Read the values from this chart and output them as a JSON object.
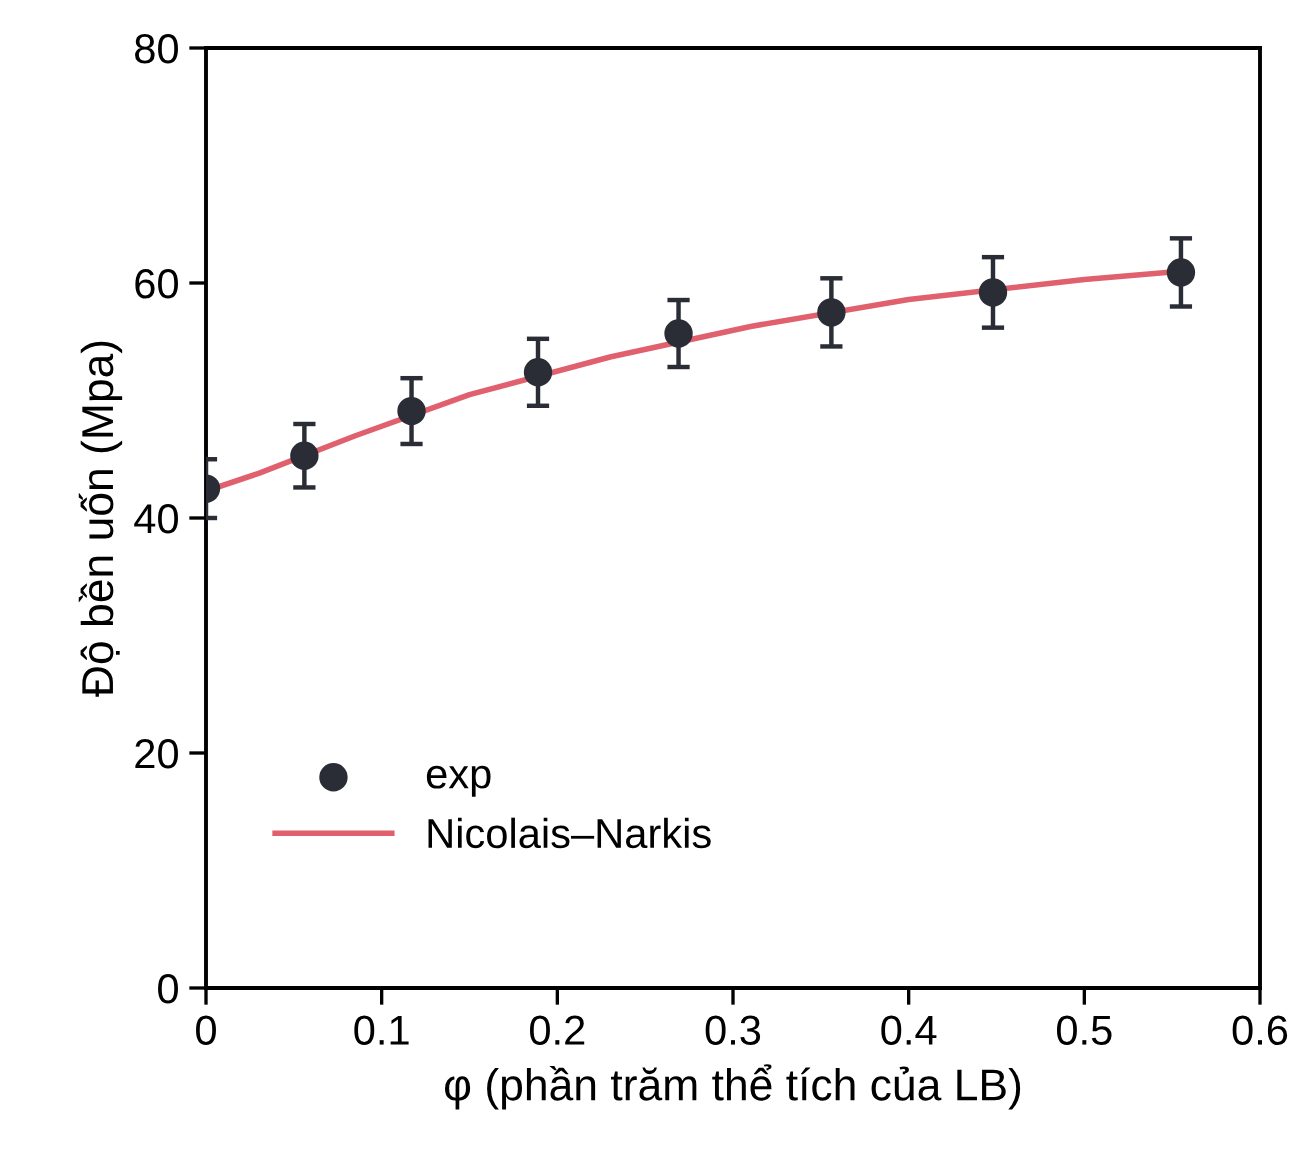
{
  "chart_data": {
    "type": "scatter",
    "xlabel": "φ (phần trăm thể tích của LB)",
    "ylabel": "Độ bền uốn (Mpa)",
    "xlim": [
      0,
      0.6
    ],
    "xticks": [
      0,
      0.1,
      0.2,
      0.3,
      0.4,
      0.5,
      0.6
    ],
    "ylim": [
      0,
      80
    ],
    "yticks": [
      0,
      20,
      40,
      60,
      80
    ],
    "grid": false,
    "legend": "bottom left",
    "series": [
      {
        "name": "exp",
        "color": "#2a2d35",
        "marker": "circle",
        "x": [
          0,
          0.056,
          0.117,
          0.189,
          0.269,
          0.356,
          0.448,
          0.555
        ],
        "values": [
          42.5,
          45.3,
          49.1,
          52.4,
          55.7,
          57.5,
          59.2,
          60.9
        ],
        "errors": [
          2.5,
          2.7,
          2.8,
          2.85,
          2.85,
          2.9,
          3.0,
          2.9
        ]
      },
      {
        "name": "Nicolais–Narkis",
        "type": "line",
        "color": "#e0606e",
        "marker": "none",
        "line_style": "solid",
        "x": [
          0,
          0.03,
          0.085,
          0.15,
          0.23,
          0.31,
          0.4,
          0.5,
          0.555
        ],
        "values": [
          42.3,
          43.8,
          47.0,
          50.5,
          53.7,
          56.3,
          58.6,
          60.3,
          61.0
        ]
      }
    ]
  }
}
